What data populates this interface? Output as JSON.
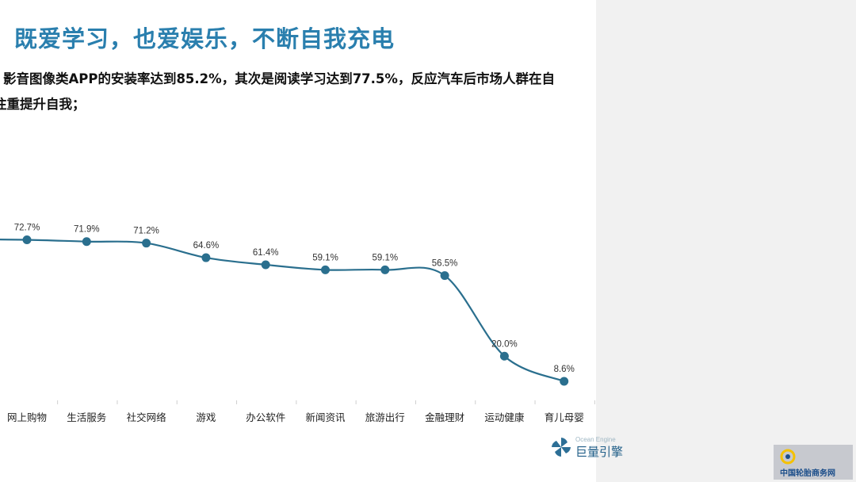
{
  "page": {
    "title": "既爱学习，也爱娱乐，不断自我充电",
    "summary_line1": "影音图像类APP的安装率达到85.2%，其次是阅读学习达到77.5%，反应汽车后市场人群在自",
    "summary_line2": "注重提升自我；"
  },
  "chart_data": {
    "type": "line",
    "categories": [
      "网上购物",
      "生活服务",
      "社交网络",
      "游戏",
      "办公软件",
      "新闻资讯",
      "旅游出行",
      "金融理财",
      "运动健康",
      "育儿母婴"
    ],
    "values": [
      72.7,
      71.9,
      71.2,
      64.6,
      61.4,
      59.1,
      59.1,
      56.5,
      20.0,
      8.6
    ],
    "data_labels": [
      "72.7%",
      "71.9%",
      "71.2%",
      "64.6%",
      "61.4%",
      "59.1%",
      "59.1%",
      "56.5%",
      "20.0%",
      "8.6%"
    ],
    "title": "",
    "xlabel": "",
    "ylabel": "",
    "ylim": [
      0,
      100
    ],
    "grid": false,
    "line_color": "#2a6f8e",
    "marker_color": "#2a6f8e"
  },
  "branding": {
    "engine_small": "Ocean Engine",
    "engine_name": "巨量引擎",
    "watermark_logo": "Tirechina.net",
    "watermark_text": "中国轮胎商务网"
  },
  "colors": {
    "title": "#2a7fae",
    "brand": "#1f5d87"
  }
}
